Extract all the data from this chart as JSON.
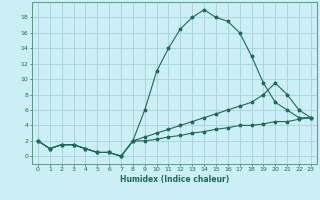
{
  "xlabel": "Humidex (Indice chaleur)",
  "bg_color": "#cceef5",
  "grid_color": "#aad4dc",
  "line_color": "#1a6b5a",
  "spine_color": "#5a9a8a",
  "xlim": [
    -0.5,
    23.5
  ],
  "ylim": [
    -1,
    20
  ],
  "xticks": [
    0,
    1,
    2,
    3,
    4,
    5,
    6,
    7,
    8,
    9,
    10,
    11,
    12,
    13,
    14,
    15,
    16,
    17,
    18,
    19,
    20,
    21,
    22,
    23
  ],
  "yticks": [
    0,
    2,
    4,
    6,
    8,
    10,
    12,
    14,
    16,
    18
  ],
  "line1_x": [
    0,
    1,
    2,
    3,
    4,
    5,
    6,
    7,
    8,
    9,
    10,
    11,
    12,
    13,
    14,
    15,
    16,
    17,
    18,
    19,
    20,
    21,
    22,
    23
  ],
  "line1_y": [
    2,
    1,
    1.5,
    1.5,
    1,
    0.5,
    0.5,
    0,
    2,
    6,
    11,
    14,
    16.5,
    18,
    19,
    18,
    17.5,
    16,
    13,
    9.5,
    7,
    6,
    5,
    5
  ],
  "line2_x": [
    0,
    1,
    2,
    3,
    4,
    5,
    6,
    7,
    8,
    9,
    10,
    11,
    12,
    13,
    14,
    15,
    16,
    17,
    18,
    19,
    20,
    21,
    22,
    23
  ],
  "line2_y": [
    2,
    1,
    1.5,
    1.5,
    1,
    0.5,
    0.5,
    0,
    2,
    2.5,
    3,
    3.5,
    4,
    4.5,
    5,
    5.5,
    6,
    6.5,
    7,
    8,
    9.5,
    8,
    6,
    5
  ],
  "line3_x": [
    0,
    1,
    2,
    3,
    4,
    5,
    6,
    7,
    8,
    9,
    10,
    11,
    12,
    13,
    14,
    15,
    16,
    17,
    18,
    19,
    20,
    21,
    22,
    23
  ],
  "line3_y": [
    2,
    1,
    1.5,
    1.5,
    1,
    0.5,
    0.5,
    0,
    2,
    2,
    2.2,
    2.5,
    2.7,
    3,
    3.2,
    3.5,
    3.7,
    4,
    4,
    4.2,
    4.5,
    4.5,
    4.8,
    5
  ]
}
